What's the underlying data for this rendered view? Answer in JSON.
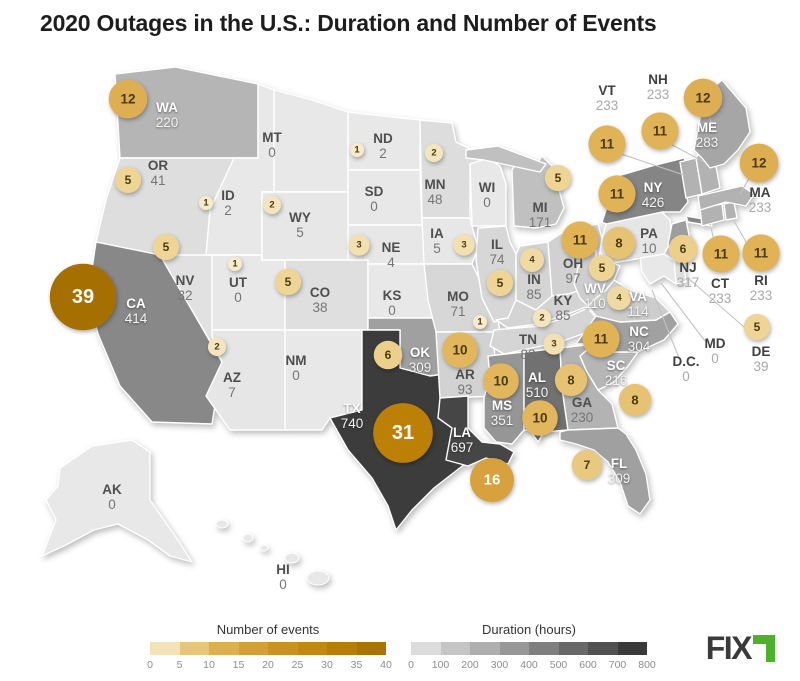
{
  "title": "2020 Outages in the U.S.: Duration and Number of Events",
  "legends": {
    "events": {
      "label": "Number of events",
      "ticks": [
        0,
        5,
        10,
        15,
        20,
        25,
        30,
        35,
        40
      ],
      "min": 0,
      "max": 40
    },
    "duration": {
      "label": "Duration (hours)",
      "ticks": [
        0,
        100,
        200,
        300,
        400,
        500,
        600,
        700,
        800
      ],
      "min": 0,
      "max": 800
    }
  },
  "logo": {
    "text": "FIX",
    "accent_color": "#4cb22a",
    "text_color": "#3a3a3a"
  },
  "colors": {
    "events_scale_stops": [
      "#f8f0d8",
      "#eed596",
      "#e2b65c",
      "#d9a542",
      "#d0982c",
      "#c88c16",
      "#c08208",
      "#a36e00"
    ],
    "duration_scale_ends": [
      "#e8e8e8",
      "#2e2e2e"
    ],
    "big_bubble": "#a87200"
  },
  "chart_data": {
    "type": "heatmap",
    "subtype": "us-choropleth-map-with-bubbles",
    "title": "2020 Outages in the U.S.: Duration and Number of Events",
    "duration_legend": {
      "label": "Duration (hours)",
      "range": [
        0,
        800
      ]
    },
    "events_legend": {
      "label": "Number of events",
      "range": [
        0,
        40
      ]
    },
    "states": [
      {
        "id": "WA",
        "abbr": "WA",
        "duration_hours": 220,
        "events": 12
      },
      {
        "id": "OR",
        "abbr": "OR",
        "duration_hours": 41,
        "events": 5
      },
      {
        "id": "CA",
        "abbr": "CA",
        "duration_hours": 414,
        "events": 39
      },
      {
        "id": "NV",
        "abbr": "NV",
        "duration_hours": 32,
        "events": 5
      },
      {
        "id": "ID",
        "abbr": "ID",
        "duration_hours": 2,
        "events": 1
      },
      {
        "id": "UT",
        "abbr": "UT",
        "duration_hours": 0,
        "events": 1
      },
      {
        "id": "AZ",
        "abbr": "AZ",
        "duration_hours": 7,
        "events": 2
      },
      {
        "id": "NM",
        "abbr": "NM",
        "duration_hours": 0,
        "events": 0
      },
      {
        "id": "MT",
        "abbr": "MT",
        "duration_hours": 0,
        "events": 0
      },
      {
        "id": "WY",
        "abbr": "WY",
        "duration_hours": 5,
        "events": 2
      },
      {
        "id": "CO",
        "abbr": "CO",
        "duration_hours": 38,
        "events": 5
      },
      {
        "id": "ND",
        "abbr": "ND",
        "duration_hours": 2,
        "events": 1
      },
      {
        "id": "SD",
        "abbr": "SD",
        "duration_hours": 0,
        "events": 0
      },
      {
        "id": "NE",
        "abbr": "NE",
        "duration_hours": 4,
        "events": 3
      },
      {
        "id": "KS",
        "abbr": "KS",
        "duration_hours": 0,
        "events": 0
      },
      {
        "id": "OK",
        "abbr": "OK",
        "duration_hours": 309,
        "events": 6
      },
      {
        "id": "TX",
        "abbr": "TX",
        "duration_hours": 740,
        "events": 31
      },
      {
        "id": "MN",
        "abbr": "MN",
        "duration_hours": 48,
        "events": 2
      },
      {
        "id": "IA",
        "abbr": "IA",
        "duration_hours": 5,
        "events": 3
      },
      {
        "id": "MO",
        "abbr": "MO",
        "duration_hours": 71,
        "events": 1
      },
      {
        "id": "AR",
        "abbr": "AR",
        "duration_hours": 93,
        "events": 10
      },
      {
        "id": "LA",
        "abbr": "LA",
        "duration_hours": 697,
        "events": 16
      },
      {
        "id": "WI",
        "abbr": "WI",
        "duration_hours": 0,
        "events": 0
      },
      {
        "id": "IL",
        "abbr": "IL",
        "duration_hours": 74,
        "events": 5
      },
      {
        "id": "IN",
        "abbr": "IN",
        "duration_hours": 85,
        "events": 4
      },
      {
        "id": "MI",
        "abbr": "MI",
        "duration_hours": 171,
        "events": 5
      },
      {
        "id": "OH",
        "abbr": "OH",
        "duration_hours": 97,
        "events": 11
      },
      {
        "id": "KY",
        "abbr": "KY",
        "duration_hours": 85,
        "events": 2
      },
      {
        "id": "TN",
        "abbr": "TN",
        "duration_hours": 82,
        "events": 3
      },
      {
        "id": "MS",
        "abbr": "MS",
        "duration_hours": 351,
        "events": 10
      },
      {
        "id": "AL",
        "abbr": "AL",
        "duration_hours": 510,
        "events": 10
      },
      {
        "id": "GA",
        "abbr": "GA",
        "duration_hours": 230,
        "events": 8
      },
      {
        "id": "FL",
        "abbr": "FL",
        "duration_hours": 309,
        "events": 7
      },
      {
        "id": "SC",
        "abbr": "SC",
        "duration_hours": 216,
        "events": 8
      },
      {
        "id": "NC",
        "abbr": "NC",
        "duration_hours": 304,
        "events": 11
      },
      {
        "id": "VA",
        "abbr": "VA",
        "duration_hours": 114,
        "events": 4
      },
      {
        "id": "WV",
        "abbr": "WV",
        "duration_hours": 110,
        "events": 5
      },
      {
        "id": "PA",
        "abbr": "PA",
        "duration_hours": 10,
        "events": 8
      },
      {
        "id": "NY",
        "abbr": "NY",
        "duration_hours": 426,
        "events": 11
      },
      {
        "id": "NJ",
        "abbr": "NJ",
        "duration_hours": 317,
        "events": 6
      },
      {
        "id": "CT",
        "abbr": "CT",
        "duration_hours": 233,
        "events": 11
      },
      {
        "id": "RI",
        "abbr": "RI",
        "duration_hours": 233,
        "events": 11
      },
      {
        "id": "MA",
        "abbr": "MA",
        "duration_hours": 233,
        "events": 12
      },
      {
        "id": "VT",
        "abbr": "VT",
        "duration_hours": 233,
        "events": 11
      },
      {
        "id": "NH",
        "abbr": "NH",
        "duration_hours": 233,
        "events": 11
      },
      {
        "id": "ME",
        "abbr": "ME",
        "duration_hours": 283,
        "events": 12
      },
      {
        "id": "MD",
        "abbr": "MD",
        "duration_hours": 0,
        "events": 0
      },
      {
        "id": "DE",
        "abbr": "DE",
        "duration_hours": 39,
        "events": 5
      },
      {
        "id": "DC",
        "abbr": "D.C.",
        "duration_hours": 0,
        "events": 0
      },
      {
        "id": "AK",
        "abbr": "AK",
        "duration_hours": 0,
        "events": 0
      },
      {
        "id": "HI",
        "abbr": "HI",
        "duration_hours": 0,
        "events": 0
      }
    ]
  }
}
